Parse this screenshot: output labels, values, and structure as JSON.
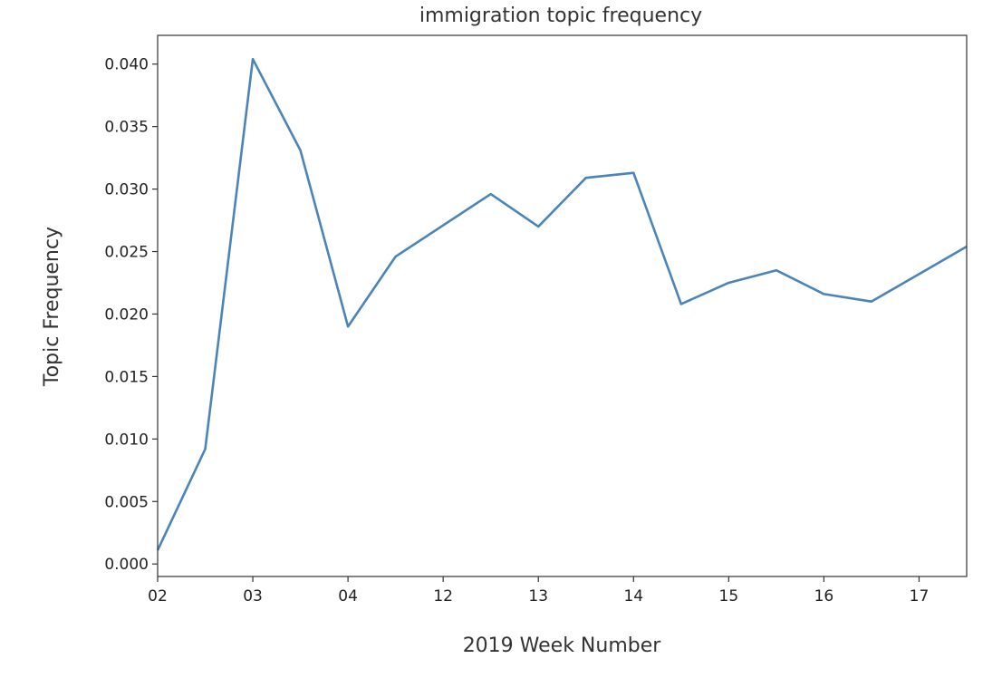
{
  "chart_data": {
    "type": "line",
    "title": "immigration topic frequency",
    "xlabel": "2019 Week Number",
    "ylabel": "Topic Frequency",
    "x_tick_labels": [
      "02",
      "03",
      "04",
      "12",
      "13",
      "14",
      "15",
      "16",
      "17"
    ],
    "x_tick_positions": [
      0,
      2,
      4,
      6,
      8,
      10,
      12,
      14,
      16
    ],
    "xlim": [
      0,
      17
    ],
    "ylim": [
      -0.001,
      0.0423
    ],
    "y_ticks": [
      0.0,
      0.005,
      0.01,
      0.015,
      0.02,
      0.025,
      0.03,
      0.035,
      0.04
    ],
    "y_tick_labels": [
      "0.000",
      "0.005",
      "0.010",
      "0.015",
      "0.020",
      "0.025",
      "0.030",
      "0.035",
      "0.040"
    ],
    "grid": false,
    "series": [
      {
        "color": "#4a84b8",
        "x": [
          0,
          1,
          2,
          3,
          4,
          5,
          6,
          7,
          8,
          9,
          10,
          11,
          12,
          13,
          14,
          15,
          16,
          17
        ],
        "values": [
          0.0011,
          0.0092,
          0.0404,
          0.0331,
          0.019,
          0.0246,
          0.0271,
          0.0296,
          0.027,
          0.0309,
          0.0313,
          0.0208,
          0.0225,
          0.0235,
          0.0216,
          0.021,
          0.0232,
          0.0254
        ]
      }
    ]
  }
}
